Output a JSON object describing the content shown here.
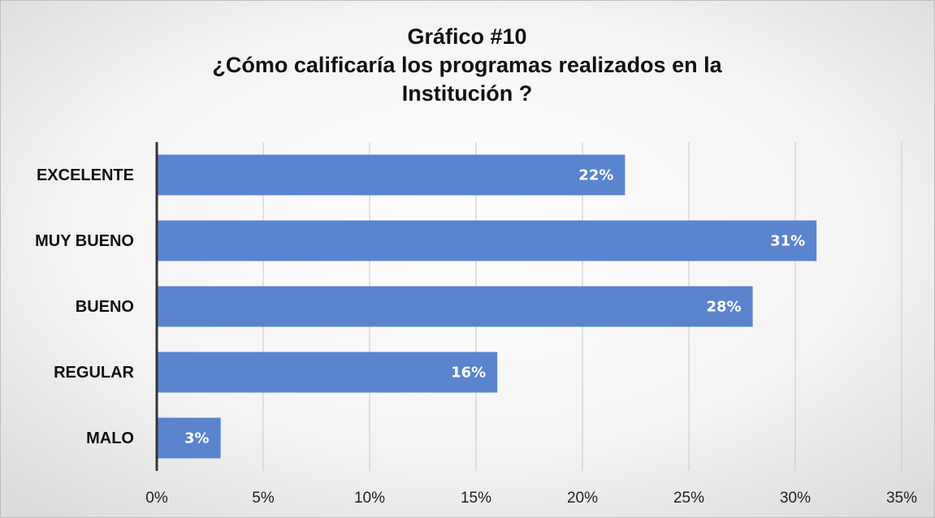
{
  "chart_data": {
    "type": "bar",
    "orientation": "horizontal",
    "title": [
      "Gráfico #10",
      "¿Cómo calificaría los programas realizados en la",
      "Institución ?"
    ],
    "categories": [
      "EXCELENTE",
      "MUY BUENO",
      "BUENO",
      "REGULAR",
      "MALO"
    ],
    "values": [
      22,
      31,
      28,
      16,
      3
    ],
    "value_labels": [
      "22%",
      "31%",
      "28%",
      "16%",
      "3%"
    ],
    "color": "#5b84cf",
    "xlim": [
      0,
      35
    ],
    "xticks": [
      {
        "value": 0,
        "label": "0%"
      },
      {
        "value": 5,
        "label": "5%"
      },
      {
        "value": 10,
        "label": "10%"
      },
      {
        "value": 15,
        "label": "15%"
      },
      {
        "value": 20,
        "label": "20%"
      },
      {
        "value": 25,
        "label": "25%"
      },
      {
        "value": 30,
        "label": "30%"
      },
      {
        "value": 35,
        "label": "35%"
      }
    ],
    "grid": true
  }
}
